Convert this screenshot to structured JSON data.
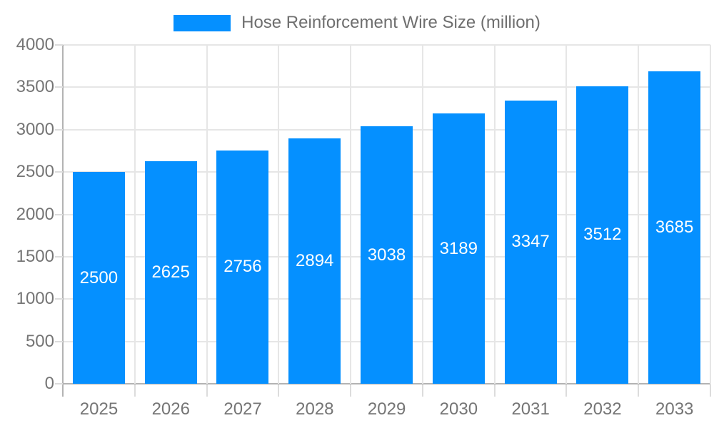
{
  "legend": {
    "label": "Hose Reinforcement Wire Size (million)"
  },
  "colors": {
    "bar": "#0590ff",
    "grid": "#e6e6e6",
    "axis": "#b3b3b3",
    "tick": "#dcdcdc",
    "label": "#757575",
    "legend_text": "#6e6e6e",
    "value_text": "#ffffff",
    "background": "#ffffff"
  },
  "chart_data": {
    "type": "bar",
    "title": "Hose Reinforcement Wire Size (million)",
    "categories": [
      "2025",
      "2026",
      "2027",
      "2028",
      "2029",
      "2030",
      "2031",
      "2032",
      "2033"
    ],
    "series": [
      {
        "name": "Hose Reinforcement Wire Size (million)",
        "values": [
          2500,
          2625,
          2756,
          2894,
          3038,
          3189,
          3347,
          3512,
          3685
        ]
      }
    ],
    "xlabel": "",
    "ylabel": "",
    "ylim": [
      0,
      4000
    ],
    "ytick_step": 500,
    "ytick_labels": [
      "0",
      "500",
      "1000",
      "1500",
      "2000",
      "2500",
      "3000",
      "3500",
      "4000"
    ],
    "grid": true,
    "legend_position": "top-center",
    "value_labels_position": "inside-middle"
  }
}
